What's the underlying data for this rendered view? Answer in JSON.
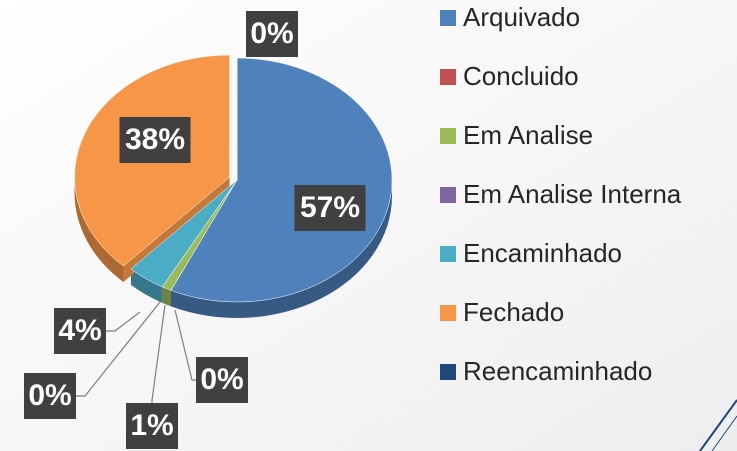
{
  "chart_data": {
    "type": "pie3d",
    "categories": [
      "Arquivado",
      "Concluido",
      "Em Analise",
      "Em Analise Interna",
      "Encaminhado",
      "Fechado",
      "Reencaminhado"
    ],
    "values": [
      57,
      0,
      1,
      0,
      4,
      38,
      0
    ],
    "value_labels": [
      "57%",
      "0%",
      "1%",
      "0%",
      "4%",
      "38%",
      "0%"
    ],
    "colors": [
      "#4f81bd",
      "#c0504d",
      "#9bbb59",
      "#8064a2",
      "#4bacc6",
      "#f79646",
      "#1f497d"
    ],
    "legend": "right"
  }
}
